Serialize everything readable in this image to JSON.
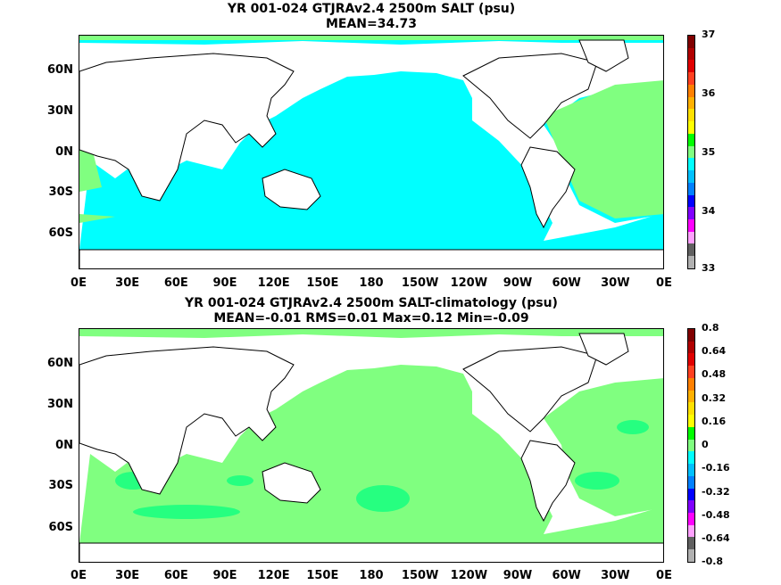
{
  "top": {
    "title1": "YR 001-024 GTJRAv2.4 2500m SALT (psu)",
    "title2": "MEAN=34.73",
    "lat_labels": [
      "60N",
      "30N",
      "0N",
      "30S",
      "60S"
    ],
    "lon_labels": [
      "0E",
      "30E",
      "60E",
      "90E",
      "120E",
      "150E",
      "180",
      "150W",
      "120W",
      "90W",
      "60W",
      "30W",
      "0E"
    ],
    "colorbar_labels": [
      "37",
      "36",
      "35",
      "34",
      "33"
    ],
    "colorbar_colors": [
      "#800000",
      "#b00000",
      "#e00000",
      "#ff4020",
      "#ff8000",
      "#ffb000",
      "#ffe000",
      "#ffff00",
      "#00ff00",
      "#80ff80",
      "#00ffff",
      "#00c0ff",
      "#0080ff",
      "#0000ff",
      "#8000ff",
      "#ff00ff",
      "#ffa0ff",
      "#606060",
      "#b0b0b0"
    ],
    "field_color": "#00ffff",
    "secondary_color": "#80ff80"
  },
  "bottom": {
    "title1": "YR 001-024 GTJRAv2.4 2500m SALT-climatology (psu)",
    "title2": "MEAN=-0.01   RMS=0.01   Max=0.12   Min=-0.09",
    "lat_labels": [
      "60N",
      "30N",
      "0N",
      "30S",
      "60S"
    ],
    "lon_labels": [
      "0E",
      "30E",
      "60E",
      "90E",
      "120E",
      "150E",
      "180",
      "150W",
      "120W",
      "90W",
      "60W",
      "30W",
      "0E"
    ],
    "colorbar_labels": [
      "0.8",
      "0.64",
      "0.48",
      "0.32",
      "0.16",
      "0",
      "-0.16",
      "-0.32",
      "-0.48",
      "-0.64",
      "-0.8"
    ],
    "colorbar_colors": [
      "#800000",
      "#b00000",
      "#e00000",
      "#ff4020",
      "#ff8000",
      "#ffb000",
      "#ffe000",
      "#ffff00",
      "#00ff00",
      "#80ff80",
      "#00ffff",
      "#00c0ff",
      "#0080ff",
      "#0000ff",
      "#8000ff",
      "#ff00ff",
      "#ffa0ff",
      "#606060",
      "#b0b0b0"
    ],
    "field_color": "#80ff80",
    "secondary_color": "#00ff80"
  }
}
